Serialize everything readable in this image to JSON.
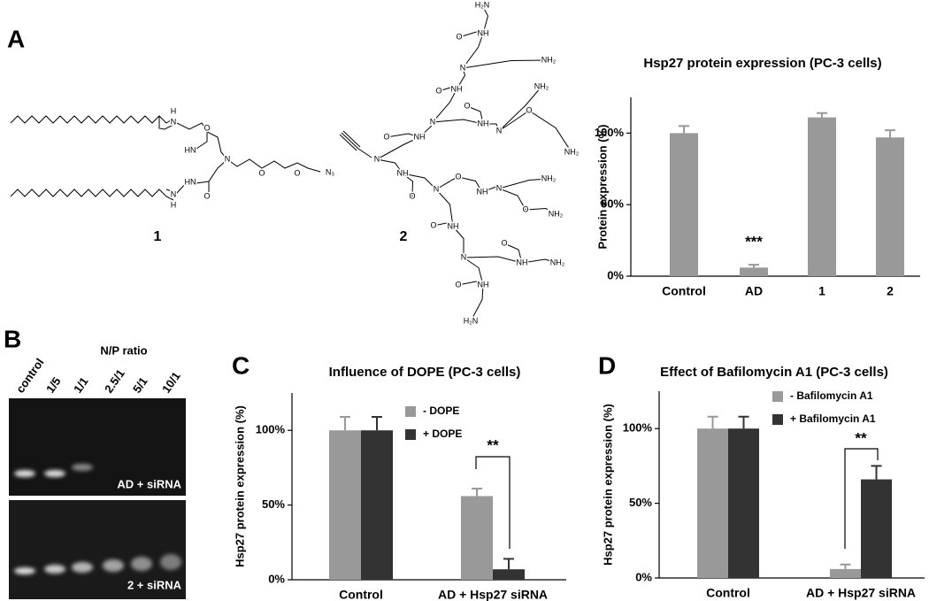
{
  "panels": {
    "a": "A",
    "b": "B",
    "c": "C",
    "d": "D"
  },
  "structures": {
    "labels": [
      "1",
      "2"
    ],
    "atoms1": [
      "H",
      "N",
      "O",
      "HN",
      "N",
      "O",
      "O",
      "N₃",
      "HN",
      "O",
      "N",
      "H"
    ],
    "atoms2": [
      "H₂N",
      "O",
      "NH",
      "N",
      "NH₂",
      "O",
      "NH",
      "NH₂",
      "N",
      "NH",
      "N",
      "O",
      "O",
      "NH₂",
      "N",
      "O",
      "NH",
      "NH",
      "O",
      "N",
      "O",
      "NH",
      "N",
      "NH₂",
      "O",
      "NH₂",
      "N",
      "O",
      "NH",
      "NH",
      "NH₂",
      "O",
      "O",
      "NH",
      "H₂N"
    ]
  },
  "gel": {
    "title": "N/P ratio",
    "lanes": [
      "control",
      "1/5",
      "1/1",
      "2.5/1",
      "5/1",
      "10/1"
    ],
    "top_label": "AD + siRNA",
    "bottom_label": "2 + siRNA"
  },
  "chart_data": [
    {
      "type": "bar",
      "title": "Hsp27 protein expression (PC-3 cells)",
      "y_label": "Protein expression (%)",
      "categories": [
        "Control",
        "AD",
        "1",
        "2"
      ],
      "values": [
        100,
        6,
        111,
        97
      ],
      "errors": [
        5,
        2,
        3,
        5
      ],
      "color": "#999999",
      "ylim": [
        0,
        125
      ],
      "yticks": [
        {
          "value": 0,
          "label": "0%"
        },
        {
          "value": 50,
          "label": "50%"
        },
        {
          "value": 100,
          "label": "100%"
        }
      ],
      "annotation": "***"
    },
    {
      "type": "bar",
      "title": "Influence of DOPE (PC-3 cells)",
      "y_label": "Hsp27 protein expression (%)",
      "categories": [
        "Control",
        "AD + Hsp27 siRNA"
      ],
      "series": [
        {
          "name": "- DOPE",
          "color": "#999999",
          "values": [
            100,
            56
          ],
          "errors": [
            9,
            5
          ]
        },
        {
          "name": "+ DOPE",
          "color": "#333333",
          "values": [
            100,
            7
          ],
          "errors": [
            9,
            7
          ]
        }
      ],
      "ylim": [
        0,
        125
      ],
      "yticks": [
        {
          "value": 0,
          "label": "0%"
        },
        {
          "value": 50,
          "label": "50%"
        },
        {
          "value": 100,
          "label": "100%"
        }
      ],
      "legend": "upper right",
      "annotation": "**"
    },
    {
      "type": "bar",
      "title": "Effect of Bafilomycin A1 (PC-3 cells)",
      "y_label": "Hsp27 protein expression (%)",
      "categories": [
        "Control",
        "AD + Hsp27 siRNA"
      ],
      "series": [
        {
          "name": "- Bafilomycin A1",
          "color": "#999999",
          "values": [
            100,
            6
          ],
          "errors": [
            8,
            3
          ]
        },
        {
          "name": "+ Bafilomycin A1",
          "color": "#333333",
          "values": [
            100,
            66
          ],
          "errors": [
            8,
            9
          ]
        }
      ],
      "ylim": [
        0,
        125
      ],
      "yticks": [
        {
          "value": 0,
          "label": "0%"
        },
        {
          "value": 50,
          "label": "50%"
        },
        {
          "value": 100,
          "label": "100%"
        }
      ],
      "legend": "upper right",
      "annotation": "**"
    }
  ]
}
